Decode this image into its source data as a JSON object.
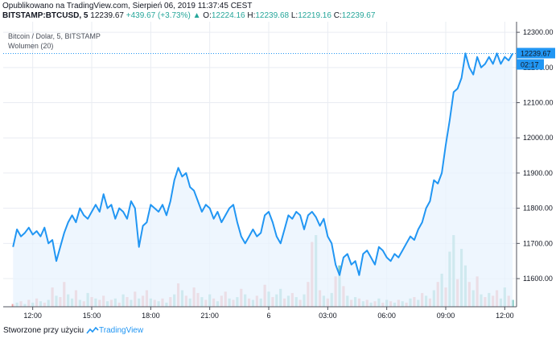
{
  "header": {
    "published": "Opublikowano na TradingView.com, Sierpień 06, 2019 11:37:45 CEST",
    "symbol": "BITSTAMP:BTCUSD, 5",
    "last": "12239.67",
    "change": "+439.67 (+3.73%)",
    "o_label": "O:",
    "o_value": "12224.16",
    "h_label": "H:",
    "h_value": "12239.68",
    "l_label": "L:",
    "l_value": "12219.16",
    "c_label": "C:",
    "c_value": "12239.67"
  },
  "legend": {
    "series_title": "Bitcoin / Dolar, 5, BITSTAMP",
    "volume_title": "Wolumen (20)"
  },
  "price_badge": {
    "value": "12239.67",
    "countdown": "02:17"
  },
  "footer": {
    "created_with": "Stworzone przy użyciu",
    "brand": "TradingView"
  },
  "colors": {
    "line": "#2196f3",
    "area": "#e8f3fd",
    "vol_up": "#6cc3b8",
    "vol_down": "#ee8f8f",
    "grid": "#e9ecf2",
    "dotted": "#2196f3"
  },
  "chart_data": {
    "type": "area",
    "y_ticks": [
      11600,
      11700,
      11800,
      11900,
      12000,
      12100,
      12200,
      12300
    ],
    "y_tick_labels": [
      "11600.00",
      "11700.00",
      "11800.00",
      "11900.00",
      "12000.00",
      "12100.00",
      "12200.00",
      "12300.00"
    ],
    "ylim": [
      11520,
      12330
    ],
    "x_ticks": [
      "12:00",
      "15:00",
      "18:00",
      "21:00",
      "6",
      "03:00",
      "06:00",
      "09:00",
      "12:00"
    ],
    "x_tick_pos": [
      1.0,
      4.0,
      7.0,
      10.0,
      13.0,
      16.0,
      19.0,
      22.0,
      25.0
    ],
    "xlim": [
      -0.5,
      25.6
    ],
    "last_value": 12239.67,
    "close": [
      [
        0.0,
        11690
      ],
      [
        0.2,
        11740
      ],
      [
        0.4,
        11720
      ],
      [
        0.6,
        11730
      ],
      [
        0.8,
        11745
      ],
      [
        1.0,
        11725
      ],
      [
        1.2,
        11735
      ],
      [
        1.4,
        11720
      ],
      [
        1.6,
        11745
      ],
      [
        1.8,
        11700
      ],
      [
        2.0,
        11710
      ],
      [
        2.2,
        11650
      ],
      [
        2.4,
        11690
      ],
      [
        2.6,
        11730
      ],
      [
        2.8,
        11760
      ],
      [
        3.0,
        11780
      ],
      [
        3.2,
        11760
      ],
      [
        3.4,
        11800
      ],
      [
        3.6,
        11780
      ],
      [
        3.8,
        11770
      ],
      [
        4.0,
        11790
      ],
      [
        4.2,
        11810
      ],
      [
        4.4,
        11790
      ],
      [
        4.6,
        11840
      ],
      [
        4.8,
        11800
      ],
      [
        5.0,
        11810
      ],
      [
        5.2,
        11770
      ],
      [
        5.4,
        11800
      ],
      [
        5.6,
        11790
      ],
      [
        5.8,
        11770
      ],
      [
        6.0,
        11820
      ],
      [
        6.2,
        11800
      ],
      [
        6.4,
        11690
      ],
      [
        6.6,
        11750
      ],
      [
        6.8,
        11760
      ],
      [
        7.0,
        11810
      ],
      [
        7.2,
        11800
      ],
      [
        7.4,
        11790
      ],
      [
        7.6,
        11810
      ],
      [
        7.8,
        11780
      ],
      [
        8.0,
        11820
      ],
      [
        8.2,
        11880
      ],
      [
        8.4,
        11915
      ],
      [
        8.6,
        11890
      ],
      [
        8.8,
        11900
      ],
      [
        9.0,
        11860
      ],
      [
        9.2,
        11850
      ],
      [
        9.4,
        11820
      ],
      [
        9.6,
        11790
      ],
      [
        9.8,
        11810
      ],
      [
        10.0,
        11800
      ],
      [
        10.2,
        11770
      ],
      [
        10.4,
        11790
      ],
      [
        10.6,
        11760
      ],
      [
        10.8,
        11780
      ],
      [
        11.0,
        11800
      ],
      [
        11.2,
        11810
      ],
      [
        11.4,
        11760
      ],
      [
        11.6,
        11720
      ],
      [
        11.8,
        11700
      ],
      [
        12.0,
        11720
      ],
      [
        12.2,
        11740
      ],
      [
        12.4,
        11720
      ],
      [
        12.6,
        11730
      ],
      [
        12.8,
        11780
      ],
      [
        13.0,
        11790
      ],
      [
        13.2,
        11760
      ],
      [
        13.4,
        11720
      ],
      [
        13.6,
        11700
      ],
      [
        13.8,
        11740
      ],
      [
        14.0,
        11780
      ],
      [
        14.2,
        11770
      ],
      [
        14.4,
        11790
      ],
      [
        14.6,
        11780
      ],
      [
        14.8,
        11740
      ],
      [
        15.0,
        11780
      ],
      [
        15.2,
        11790
      ],
      [
        15.4,
        11775
      ],
      [
        15.6,
        11750
      ],
      [
        15.8,
        11770
      ],
      [
        16.0,
        11720
      ],
      [
        16.2,
        11700
      ],
      [
        16.4,
        11640
      ],
      [
        16.6,
        11610
      ],
      [
        16.8,
        11660
      ],
      [
        17.0,
        11670
      ],
      [
        17.2,
        11640
      ],
      [
        17.4,
        11650
      ],
      [
        17.6,
        11610
      ],
      [
        17.8,
        11670
      ],
      [
        18.0,
        11680
      ],
      [
        18.2,
        11660
      ],
      [
        18.4,
        11640
      ],
      [
        18.6,
        11690
      ],
      [
        18.8,
        11680
      ],
      [
        19.0,
        11660
      ],
      [
        19.2,
        11650
      ],
      [
        19.4,
        11670
      ],
      [
        19.6,
        11660
      ],
      [
        19.8,
        11680
      ],
      [
        20.0,
        11700
      ],
      [
        20.2,
        11720
      ],
      [
        20.4,
        11710
      ],
      [
        20.6,
        11740
      ],
      [
        20.8,
        11760
      ],
      [
        21.0,
        11800
      ],
      [
        21.2,
        11820
      ],
      [
        21.4,
        11880
      ],
      [
        21.6,
        11870
      ],
      [
        21.8,
        11900
      ],
      [
        22.0,
        11980
      ],
      [
        22.2,
        12050
      ],
      [
        22.4,
        12130
      ],
      [
        22.6,
        12140
      ],
      [
        22.8,
        12170
      ],
      [
        23.0,
        12240
      ],
      [
        23.2,
        12200
      ],
      [
        23.4,
        12180
      ],
      [
        23.6,
        12230
      ],
      [
        23.8,
        12200
      ],
      [
        24.0,
        12210
      ],
      [
        24.2,
        12230
      ],
      [
        24.4,
        12210
      ],
      [
        24.6,
        12240
      ],
      [
        24.8,
        12210
      ],
      [
        25.0,
        12230
      ],
      [
        25.2,
        12220
      ],
      [
        25.4,
        12239.67
      ]
    ],
    "volume": [
      [
        0.0,
        2,
        "d"
      ],
      [
        0.2,
        3,
        "u"
      ],
      [
        0.4,
        4,
        "d"
      ],
      [
        0.6,
        2,
        "u"
      ],
      [
        0.8,
        5,
        "d"
      ],
      [
        1.0,
        3,
        "u"
      ],
      [
        1.2,
        6,
        "d"
      ],
      [
        1.4,
        4,
        "u"
      ],
      [
        1.6,
        3,
        "d"
      ],
      [
        1.8,
        5,
        "u"
      ],
      [
        2.0,
        14,
        "d"
      ],
      [
        2.2,
        8,
        "u"
      ],
      [
        2.4,
        7,
        "d"
      ],
      [
        2.6,
        18,
        "d"
      ],
      [
        2.8,
        9,
        "u"
      ],
      [
        3.0,
        6,
        "u"
      ],
      [
        3.2,
        12,
        "d"
      ],
      [
        3.4,
        5,
        "u"
      ],
      [
        3.6,
        4,
        "d"
      ],
      [
        3.8,
        10,
        "u"
      ],
      [
        4.0,
        7,
        "d"
      ],
      [
        4.2,
        6,
        "u"
      ],
      [
        4.4,
        5,
        "d"
      ],
      [
        4.6,
        8,
        "d"
      ],
      [
        4.8,
        4,
        "u"
      ],
      [
        5.0,
        5,
        "d"
      ],
      [
        5.2,
        6,
        "u"
      ],
      [
        5.4,
        3,
        "d"
      ],
      [
        5.6,
        9,
        "u"
      ],
      [
        5.8,
        7,
        "d"
      ],
      [
        6.0,
        5,
        "u"
      ],
      [
        6.2,
        11,
        "d"
      ],
      [
        6.4,
        6,
        "u"
      ],
      [
        6.6,
        8,
        "d"
      ],
      [
        6.8,
        12,
        "d"
      ],
      [
        7.0,
        6,
        "u"
      ],
      [
        7.2,
        5,
        "d"
      ],
      [
        7.4,
        4,
        "u"
      ],
      [
        7.6,
        6,
        "d"
      ],
      [
        7.8,
        3,
        "u"
      ],
      [
        8.0,
        7,
        "d"
      ],
      [
        8.2,
        9,
        "u"
      ],
      [
        8.4,
        17,
        "d"
      ],
      [
        8.6,
        12,
        "u"
      ],
      [
        8.8,
        8,
        "d"
      ],
      [
        9.0,
        6,
        "u"
      ],
      [
        9.2,
        14,
        "d"
      ],
      [
        9.4,
        10,
        "d"
      ],
      [
        9.6,
        7,
        "u"
      ],
      [
        9.8,
        5,
        "d"
      ],
      [
        10.0,
        9,
        "u"
      ],
      [
        10.2,
        6,
        "d"
      ],
      [
        10.4,
        4,
        "u"
      ],
      [
        10.6,
        8,
        "d"
      ],
      [
        10.8,
        11,
        "d"
      ],
      [
        11.0,
        6,
        "u"
      ],
      [
        11.2,
        5,
        "d"
      ],
      [
        11.4,
        7,
        "u"
      ],
      [
        11.6,
        13,
        "d"
      ],
      [
        11.8,
        9,
        "u"
      ],
      [
        12.0,
        6,
        "d"
      ],
      [
        12.2,
        5,
        "u"
      ],
      [
        12.4,
        8,
        "d"
      ],
      [
        12.6,
        6,
        "u"
      ],
      [
        12.8,
        16,
        "d"
      ],
      [
        13.0,
        11,
        "u"
      ],
      [
        13.2,
        7,
        "d"
      ],
      [
        13.4,
        9,
        "u"
      ],
      [
        13.6,
        13,
        "u"
      ],
      [
        13.8,
        6,
        "d"
      ],
      [
        14.0,
        8,
        "u"
      ],
      [
        14.2,
        10,
        "d"
      ],
      [
        14.4,
        7,
        "u"
      ],
      [
        14.6,
        5,
        "d"
      ],
      [
        14.8,
        9,
        "u"
      ],
      [
        15.0,
        18,
        "d"
      ],
      [
        15.2,
        47,
        "d"
      ],
      [
        15.4,
        52,
        "u"
      ],
      [
        15.6,
        12,
        "d"
      ],
      [
        15.8,
        8,
        "u"
      ],
      [
        16.0,
        6,
        "d"
      ],
      [
        16.2,
        10,
        "u"
      ],
      [
        16.4,
        22,
        "d"
      ],
      [
        16.6,
        30,
        "u"
      ],
      [
        16.8,
        15,
        "d"
      ],
      [
        17.0,
        8,
        "u"
      ],
      [
        17.2,
        5,
        "d"
      ],
      [
        17.4,
        7,
        "u"
      ],
      [
        17.6,
        6,
        "d"
      ],
      [
        17.8,
        4,
        "u"
      ],
      [
        18.0,
        5,
        "d"
      ],
      [
        18.2,
        3,
        "u"
      ],
      [
        18.4,
        4,
        "d"
      ],
      [
        18.6,
        6,
        "u"
      ],
      [
        18.8,
        3,
        "d"
      ],
      [
        19.0,
        5,
        "u"
      ],
      [
        19.2,
        4,
        "d"
      ],
      [
        19.4,
        3,
        "u"
      ],
      [
        19.6,
        5,
        "d"
      ],
      [
        19.8,
        4,
        "u"
      ],
      [
        20.0,
        3,
        "d"
      ],
      [
        20.2,
        6,
        "u"
      ],
      [
        20.4,
        7,
        "d"
      ],
      [
        20.6,
        5,
        "u"
      ],
      [
        20.8,
        10,
        "d"
      ],
      [
        21.0,
        8,
        "u"
      ],
      [
        21.2,
        6,
        "d"
      ],
      [
        21.4,
        12,
        "u"
      ],
      [
        21.6,
        18,
        "d"
      ],
      [
        21.8,
        24,
        "u"
      ],
      [
        22.0,
        14,
        "d"
      ],
      [
        22.2,
        40,
        "u"
      ],
      [
        22.4,
        52,
        "u"
      ],
      [
        22.6,
        20,
        "d"
      ],
      [
        22.8,
        42,
        "u"
      ],
      [
        23.0,
        30,
        "u"
      ],
      [
        23.2,
        18,
        "d"
      ],
      [
        23.4,
        12,
        "u"
      ],
      [
        23.6,
        22,
        "d"
      ],
      [
        23.8,
        9,
        "u"
      ],
      [
        24.0,
        7,
        "d"
      ],
      [
        24.2,
        10,
        "u"
      ],
      [
        24.4,
        8,
        "d"
      ],
      [
        24.6,
        12,
        "d"
      ],
      [
        24.8,
        6,
        "u"
      ],
      [
        25.0,
        14,
        "u"
      ],
      [
        25.2,
        8,
        "d"
      ],
      [
        25.4,
        5,
        "u"
      ]
    ]
  }
}
